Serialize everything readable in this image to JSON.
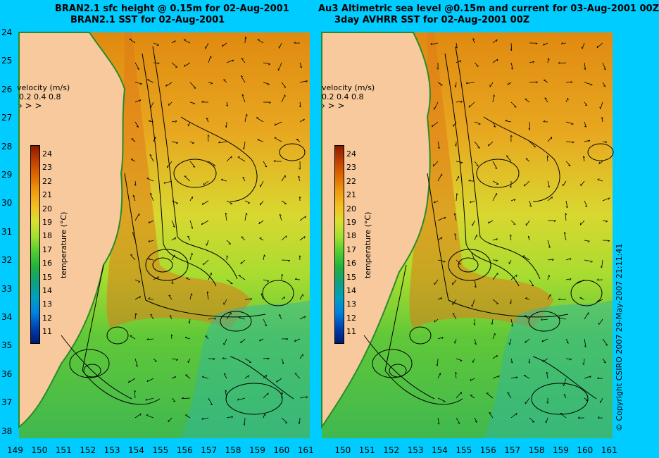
{
  "left_panel": {
    "title_line1": "BRAN2.1 sfc height @ 0.15m for 02-Aug-2001",
    "title_line2": "BRAN2.1 SST for 02-Aug-2001"
  },
  "right_panel": {
    "title_line1": "Au3 Altimetric sea level  @0.15m and current for 03-Aug-2001 00Z",
    "title_line2": "3day AVHRR SST for 02-Aug-2001 00Z"
  },
  "velocity_legend": {
    "label": "velocity (m/s)",
    "scale": "0.2 0.4 0.8"
  },
  "colorbar": {
    "title": "temperature (°C)",
    "ticks": [
      "24",
      "23",
      "22",
      "21",
      "20",
      "19",
      "18",
      "17",
      "16",
      "15",
      "14",
      "13",
      "12",
      "11"
    ],
    "colors": [
      "#8b1a00",
      "#c04000",
      "#e06a00",
      "#f09a10",
      "#f4c020",
      "#d8e030",
      "#a0e030",
      "#50cc30",
      "#20b040",
      "#10a080",
      "#00a0c0",
      "#0080e0",
      "#0040b0",
      "#001a70"
    ]
  },
  "latitude_ticks": [
    "24",
    "25",
    "26",
    "27",
    "28",
    "29",
    "30",
    "31",
    "32",
    "33",
    "34",
    "35",
    "36",
    "37",
    "38"
  ],
  "longitude_ticks": [
    "149",
    "150",
    "151",
    "152",
    "153",
    "154",
    "155",
    "156",
    "157",
    "158",
    "159",
    "160",
    "161"
  ],
  "copyright": "© Copyright CSIRO 2007   29-May-2007 21:11:41",
  "colors": {
    "background": "#00ccff",
    "land": "#f7c99c"
  }
}
